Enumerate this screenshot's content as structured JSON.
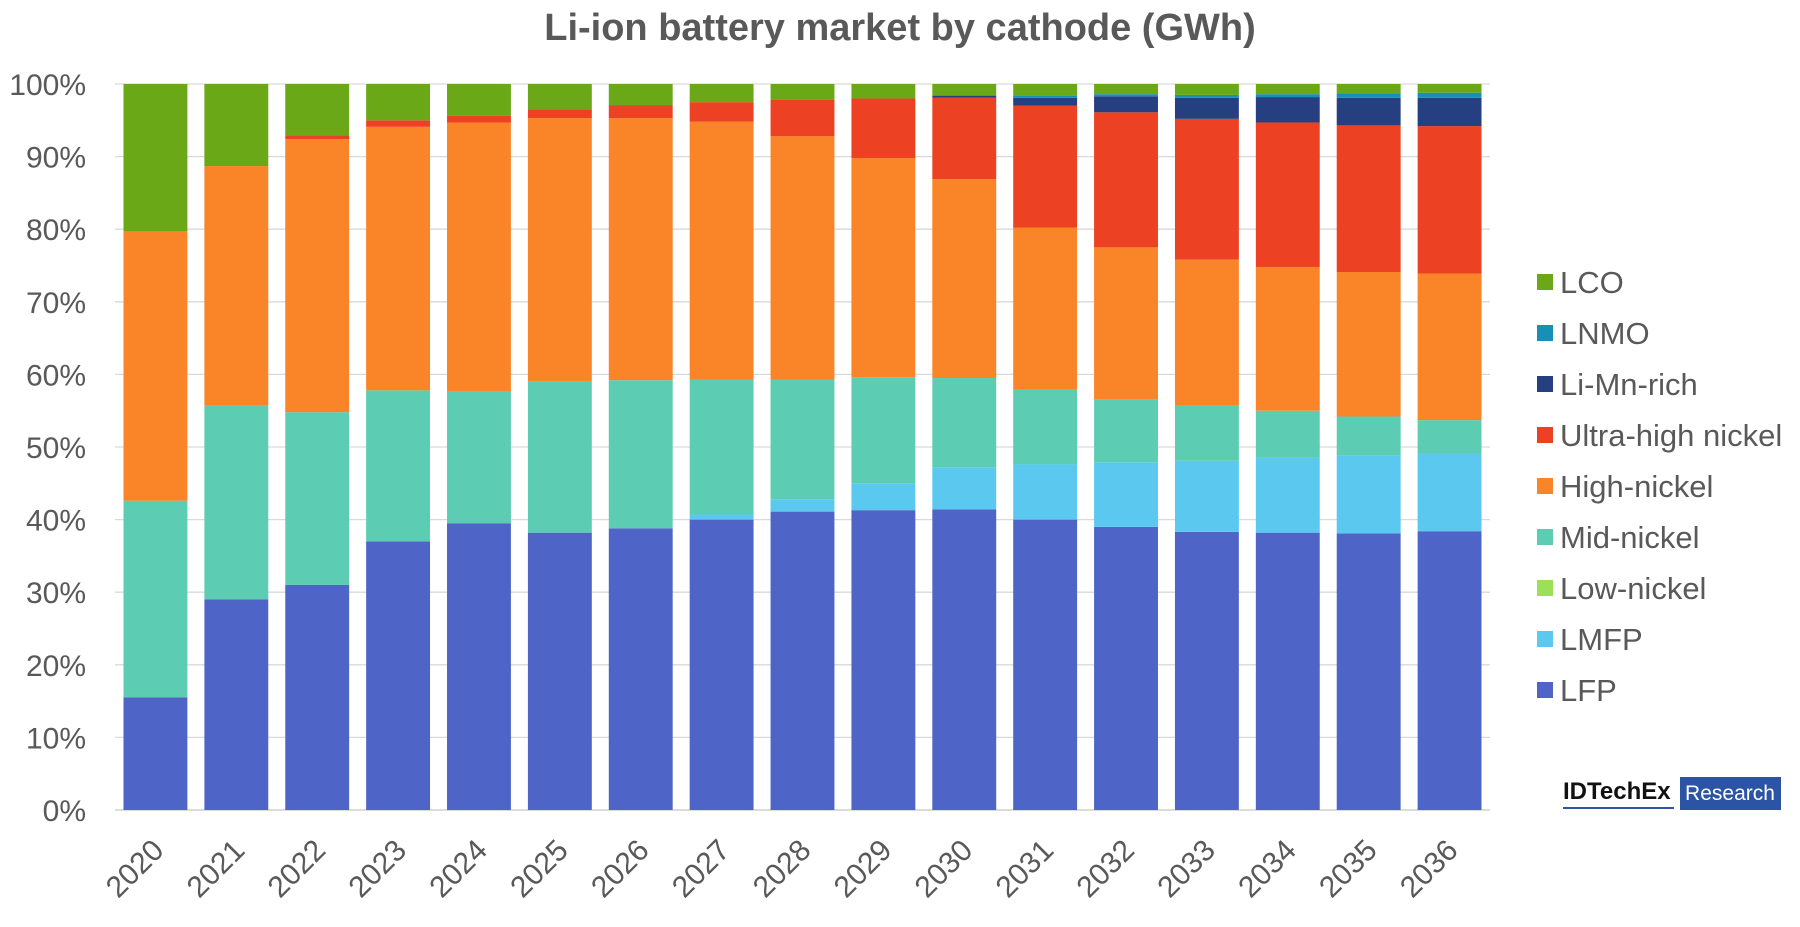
{
  "chart_data": {
    "type": "bar",
    "stacked": true,
    "normalized_percent": true,
    "title": "Li-ion battery market by cathode (GWh)",
    "categories": [
      "2020",
      "2021",
      "2022",
      "2023",
      "2024",
      "2025",
      "2026",
      "2027",
      "2028",
      "2029",
      "2030",
      "2031",
      "2032",
      "2033",
      "2034",
      "2035",
      "2036"
    ],
    "ylim": [
      0,
      100
    ],
    "yticks": [
      "0%",
      "10%",
      "20%",
      "30%",
      "40%",
      "50%",
      "60%",
      "70%",
      "80%",
      "90%",
      "100%"
    ],
    "grid": true,
    "legend_position": "right",
    "series": [
      {
        "name": "LFP",
        "color": "#4e65c7",
        "values": [
          15.5,
          29,
          31,
          37,
          39.5,
          38.2,
          38.8,
          40,
          41.1,
          41.3,
          41.4,
          40,
          39,
          38.3,
          38.2,
          38.1,
          38.4
        ]
      },
      {
        "name": "LMFP",
        "color": "#5bc8f0",
        "values": [
          0,
          0,
          0,
          0,
          0,
          0,
          0,
          0.7,
          1.7,
          3.7,
          5.8,
          7.6,
          8.9,
          9.8,
          10.3,
          10.7,
          10.7
        ]
      },
      {
        "name": "Low-nickel",
        "color": "#9be056",
        "values": [
          0,
          0,
          0,
          0,
          0,
          0,
          0,
          0,
          0,
          0,
          0,
          0,
          0,
          0,
          0,
          0,
          0
        ]
      },
      {
        "name": "Mid-nickel",
        "color": "#5ccdb2",
        "values": [
          27.1,
          26.7,
          23.8,
          20.8,
          18.1,
          20.8,
          20.4,
          18.6,
          16.5,
          14.6,
          12.3,
          10.3,
          8.7,
          7.6,
          6.5,
          5.4,
          4.6
        ]
      },
      {
        "name": "High-nickel",
        "color": "#fa8428",
        "values": [
          37.1,
          33,
          37.6,
          36.3,
          37.1,
          36.3,
          36.1,
          35.5,
          33.5,
          30.2,
          27.4,
          22.3,
          20.9,
          20.1,
          19.8,
          19.9,
          20.2
        ]
      },
      {
        "name": "Ultra-high nickel",
        "color": "#ec4123",
        "values": [
          0,
          0,
          0.5,
          0.9,
          0.9,
          1.2,
          1.8,
          2.7,
          5,
          8.2,
          11.2,
          16.8,
          18.6,
          19.4,
          19.9,
          20.2,
          20.3
        ]
      },
      {
        "name": "Li-Mn-rich",
        "color": "#263f80",
        "values": [
          0,
          0,
          0,
          0,
          0,
          0,
          0,
          0,
          0,
          0,
          0.3,
          1.1,
          2.2,
          2.9,
          3.5,
          3.8,
          3.9
        ]
      },
      {
        "name": "LNMO",
        "color": "#1790b8",
        "values": [
          0,
          0,
          0,
          0,
          0,
          0,
          0,
          0,
          0,
          0,
          0,
          0.3,
          0.3,
          0.4,
          0.4,
          0.6,
          0.7
        ]
      },
      {
        "name": "LCO",
        "color": "#6aa817",
        "values": [
          20.3,
          11.3,
          7.1,
          5,
          4.4,
          3.5,
          2.9,
          2.5,
          2.2,
          2,
          1.6,
          1.6,
          1.4,
          1.5,
          1.4,
          1.3,
          1.2
        ]
      }
    ],
    "legend_order": [
      "LCO",
      "LNMO",
      "Li-Mn-rich",
      "Ultra-high nickel",
      "High-nickel",
      "Mid-nickel",
      "Low-nickel",
      "LMFP",
      "LFP"
    ]
  },
  "branding": {
    "brand_name": "IDTechEx",
    "brand_tag": "Research",
    "brand_color": "#2c54a5"
  }
}
